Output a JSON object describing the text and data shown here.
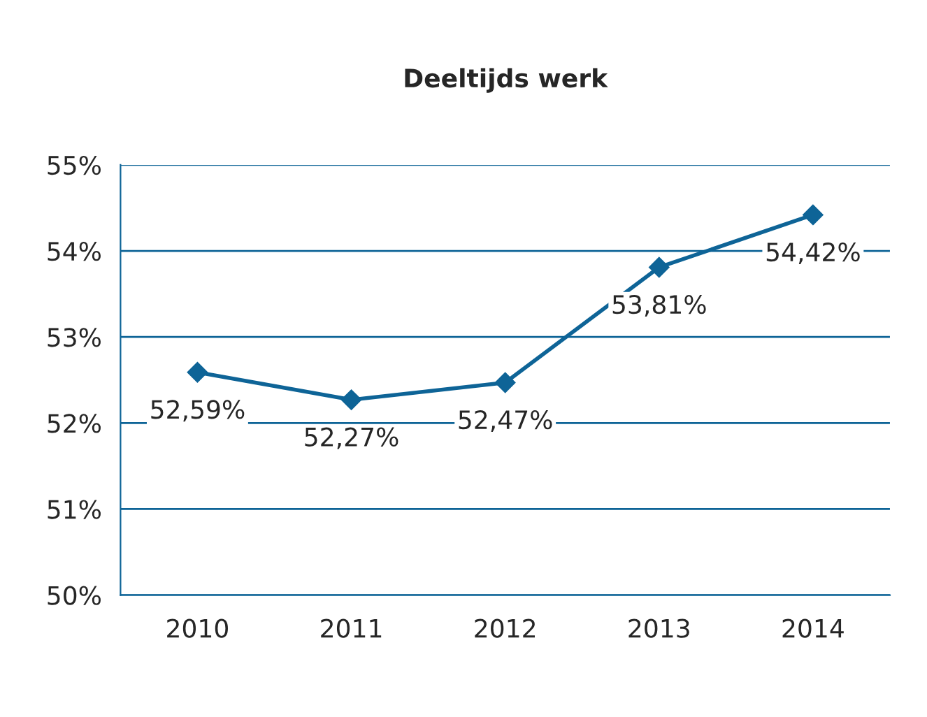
{
  "chart_data": {
    "type": "line",
    "title": "Deeltijds werk",
    "categories": [
      "2010",
      "2011",
      "2012",
      "2013",
      "2014"
    ],
    "series": [
      {
        "color": "#0e6497",
        "values": [
          52.59,
          52.27,
          52.47,
          53.81,
          54.42
        ],
        "value_labels": [
          "52,59%",
          "52,27%",
          "52,47%",
          "53,81%",
          "54,42%"
        ]
      }
    ],
    "ylim": [
      50,
      55
    ],
    "yticks": [
      {
        "value": 50,
        "label": "50%"
      },
      {
        "value": 51,
        "label": "51%"
      },
      {
        "value": 52,
        "label": "52%"
      },
      {
        "value": 53,
        "label": "53%"
      },
      {
        "value": 54,
        "label": "54%"
      },
      {
        "value": 55,
        "label": "55%"
      }
    ],
    "grid": "y",
    "marker": "diamond",
    "line_style": "solid",
    "legend": false
  }
}
